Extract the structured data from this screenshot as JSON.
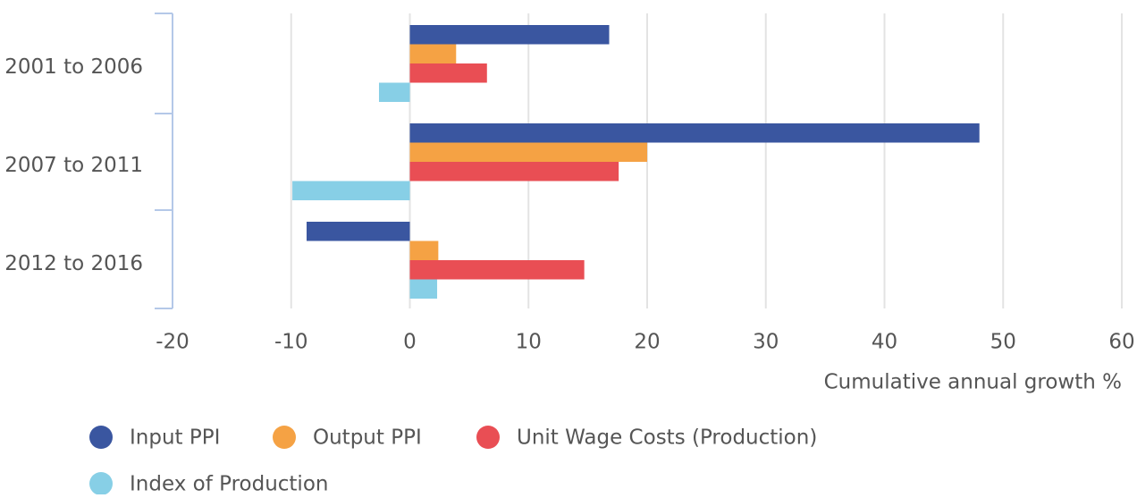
{
  "chart_data": {
    "type": "hbar",
    "categories": [
      "2001 to 2006",
      "2007 to 2011",
      "2012 to 2016"
    ],
    "series": [
      {
        "name": "Input PPI",
        "color": "#3a56a0",
        "values": [
          16.8,
          48.0,
          -8.7
        ]
      },
      {
        "name": "Output PPI",
        "color": "#f5a244",
        "values": [
          3.9,
          20.0,
          2.4
        ]
      },
      {
        "name": "Unit Wage Costs (Production)",
        "color": "#e94e54",
        "values": [
          6.5,
          17.6,
          14.7
        ]
      },
      {
        "name": "Index of Production",
        "color": "#87cfe6",
        "values": [
          -2.6,
          -9.9,
          2.3
        ]
      }
    ],
    "x_label": "Cumulative annual growth %",
    "xlim": [
      -20,
      60
    ],
    "xticks": [
      -20,
      -10,
      0,
      10,
      20,
      30,
      40,
      50,
      60
    ],
    "grid": true,
    "legend": "bottom"
  }
}
